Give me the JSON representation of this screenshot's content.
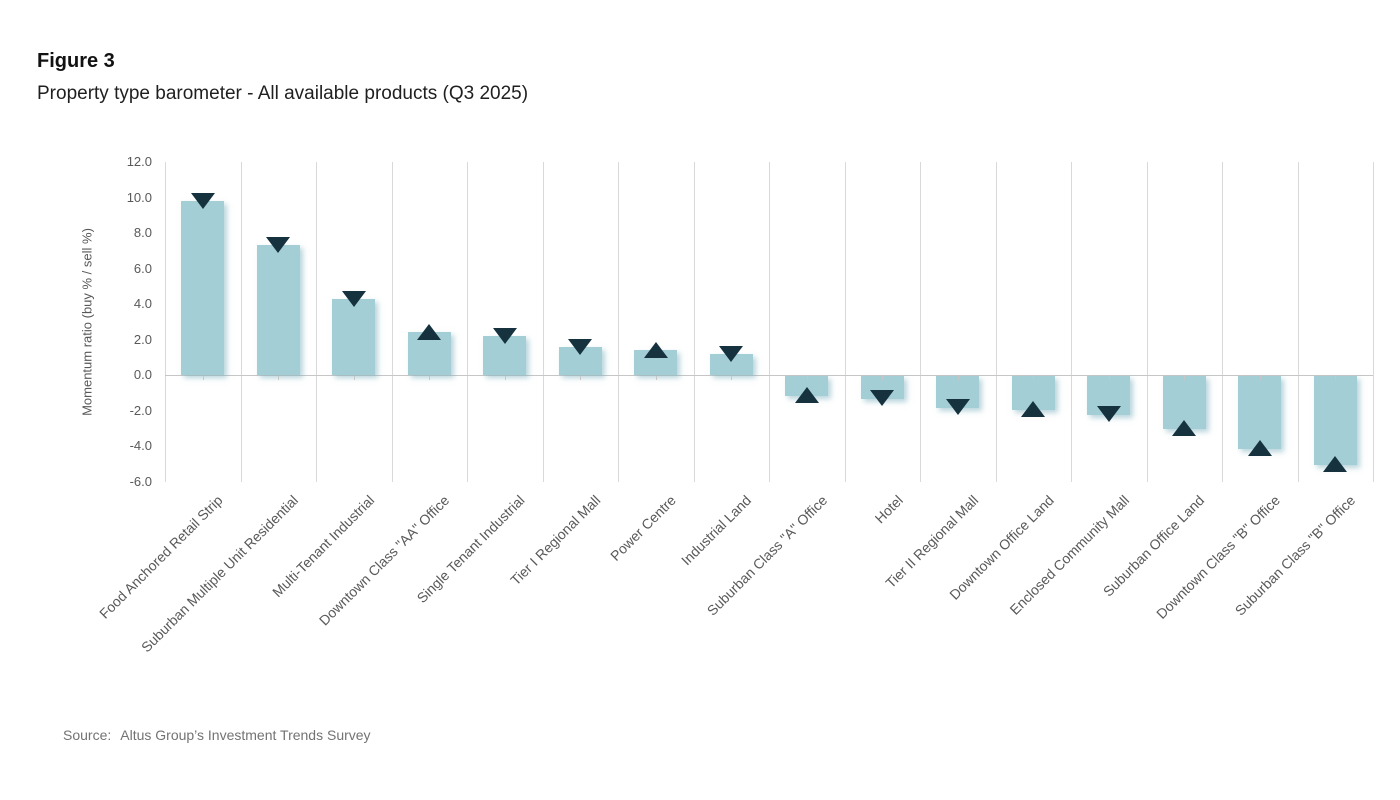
{
  "figure": {
    "label": "Figure 3",
    "title": "Property type barometer - All available products (Q3 2025)",
    "source_label": "Source:",
    "source_text": "Altus Group’s Investment Trends Survey"
  },
  "chart_data": {
    "type": "bar",
    "title": "Property type barometer - All available products (Q3 2025)",
    "xlabel": "",
    "ylabel": "Momentum ratio (buy % / sell %)",
    "ylim": [
      -6.0,
      12.0
    ],
    "ytick_step": 2.0,
    "ytick_labels": [
      "12.0",
      "10.0",
      "8.0",
      "6.0",
      "4.0",
      "2.0",
      "0.0",
      "-2.0",
      "-4.0",
      "-6.0"
    ],
    "grid": {
      "vertical_category_lines": true,
      "horizontal_lines": false,
      "zero_axis_line": true,
      "category_axis_ticks": true
    },
    "legend": "none",
    "categories": [
      "Food Anchored Retail Strip",
      "Suburban Multiple Unit Residential",
      "Multi-Tenant Industrial",
      "Downtown Class \"AA\" Office",
      "Single Tenant Industrial",
      "Tier I Regional Mall",
      "Power Centre",
      "Industrial Land",
      "Suburban Class \"A\" Office",
      "Hotel",
      "Tier II Regional Mall",
      "Downtown Office Land",
      "Enclosed Community Mall",
      "Suburban Office Land",
      "Downtown Class \"B\" Office",
      "Suburban Class \"B\" Office"
    ],
    "values": [
      9.8,
      7.3,
      4.3,
      2.4,
      2.2,
      1.6,
      1.4,
      1.2,
      -1.1,
      -1.3,
      -1.8,
      -1.9,
      -2.2,
      -3.0,
      -4.1,
      -5.0
    ],
    "marker_direction": [
      "down",
      "down",
      "down",
      "up",
      "down",
      "down",
      "up",
      "down",
      "up",
      "down",
      "down",
      "up",
      "down",
      "up",
      "up",
      "up"
    ],
    "colors": {
      "bar": "#a3ced6",
      "marker": "#15323e",
      "gridline": "#d9d9d9",
      "axis_line": "#c6c6c6",
      "tick_text": "#595959",
      "category_text": "#595959"
    }
  }
}
